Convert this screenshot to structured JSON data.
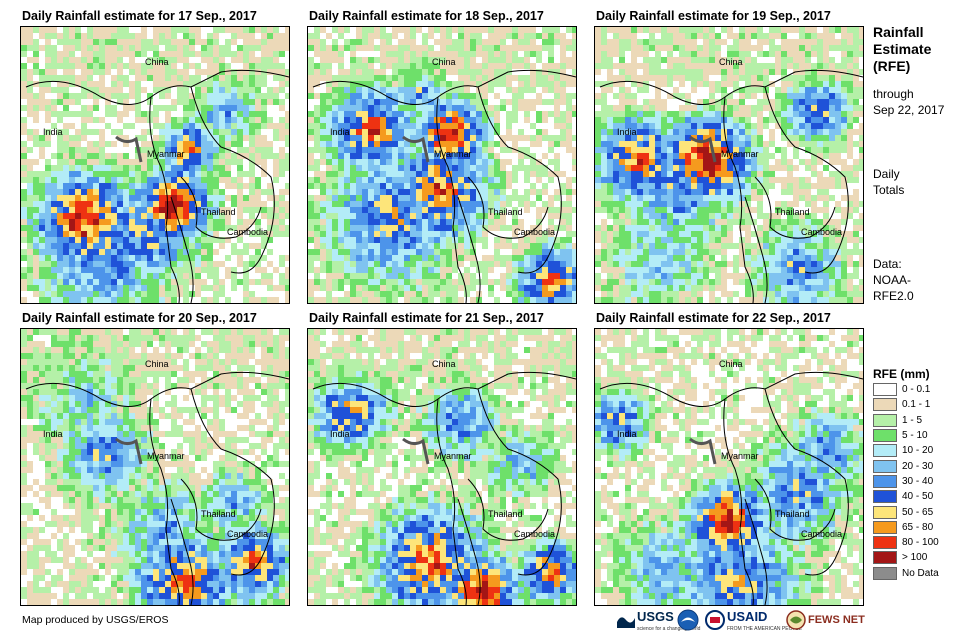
{
  "panels": [
    {
      "title": "Daily Rainfall estimate for 17 Sep., 2017"
    },
    {
      "title": "Daily Rainfall estimate for 18 Sep., 2017"
    },
    {
      "title": "Daily Rainfall estimate for 19 Sep., 2017"
    },
    {
      "title": "Daily Rainfall estimate for 20 Sep., 2017"
    },
    {
      "title": "Daily Rainfall estimate for 21 Sep., 2017"
    },
    {
      "title": "Daily Rainfall estimate for 22 Sep., 2017"
    }
  ],
  "map_labels": {
    "china": "China",
    "india": "India",
    "myanmar": "Myanmar",
    "thailand": "Thailand",
    "cambodia": "Cambodia"
  },
  "sidebar": {
    "title_line1": "Rainfall",
    "title_line2": "Estimate",
    "title_line3": "(RFE)",
    "through_line1": "through",
    "through_line2": "Sep 22, 2017",
    "daily_line1": "Daily",
    "daily_line2": "Totals",
    "data_line1": "Data:",
    "data_line2": "NOAA-",
    "data_line3": "RFE2.0"
  },
  "legend": {
    "title": "RFE (mm)",
    "items": [
      {
        "label": "0 - 0.1",
        "color": "#ffffff"
      },
      {
        "label": "0.1 - 1",
        "color": "#ecd9b8"
      },
      {
        "label": "1 - 5",
        "color": "#b5f0a8"
      },
      {
        "label": "5 - 10",
        "color": "#6ee06a"
      },
      {
        "label": "10 - 20",
        "color": "#b3ecf7"
      },
      {
        "label": "20 - 30",
        "color": "#7fc3f0"
      },
      {
        "label": "30 - 40",
        "color": "#4d94ea"
      },
      {
        "label": "40 - 50",
        "color": "#1f52d8"
      },
      {
        "label": "50 - 65",
        "color": "#fde57a"
      },
      {
        "label": "65 - 80",
        "color": "#f59a1e"
      },
      {
        "label": "80 - 100",
        "color": "#ee3212"
      },
      {
        "label": "> 100",
        "color": "#a31616"
      },
      {
        "label": "No Data",
        "color": "#8c8c8c"
      }
    ]
  },
  "footer": {
    "credit": "Map produced by USGS/EROS",
    "usgs_logo": "USGS",
    "usgs_tagline": "science for a changing world",
    "usaid_logo": "USAID",
    "usaid_tagline": "FROM THE AMERICAN PEOPLE",
    "fews_logo": "FEWS NET"
  }
}
